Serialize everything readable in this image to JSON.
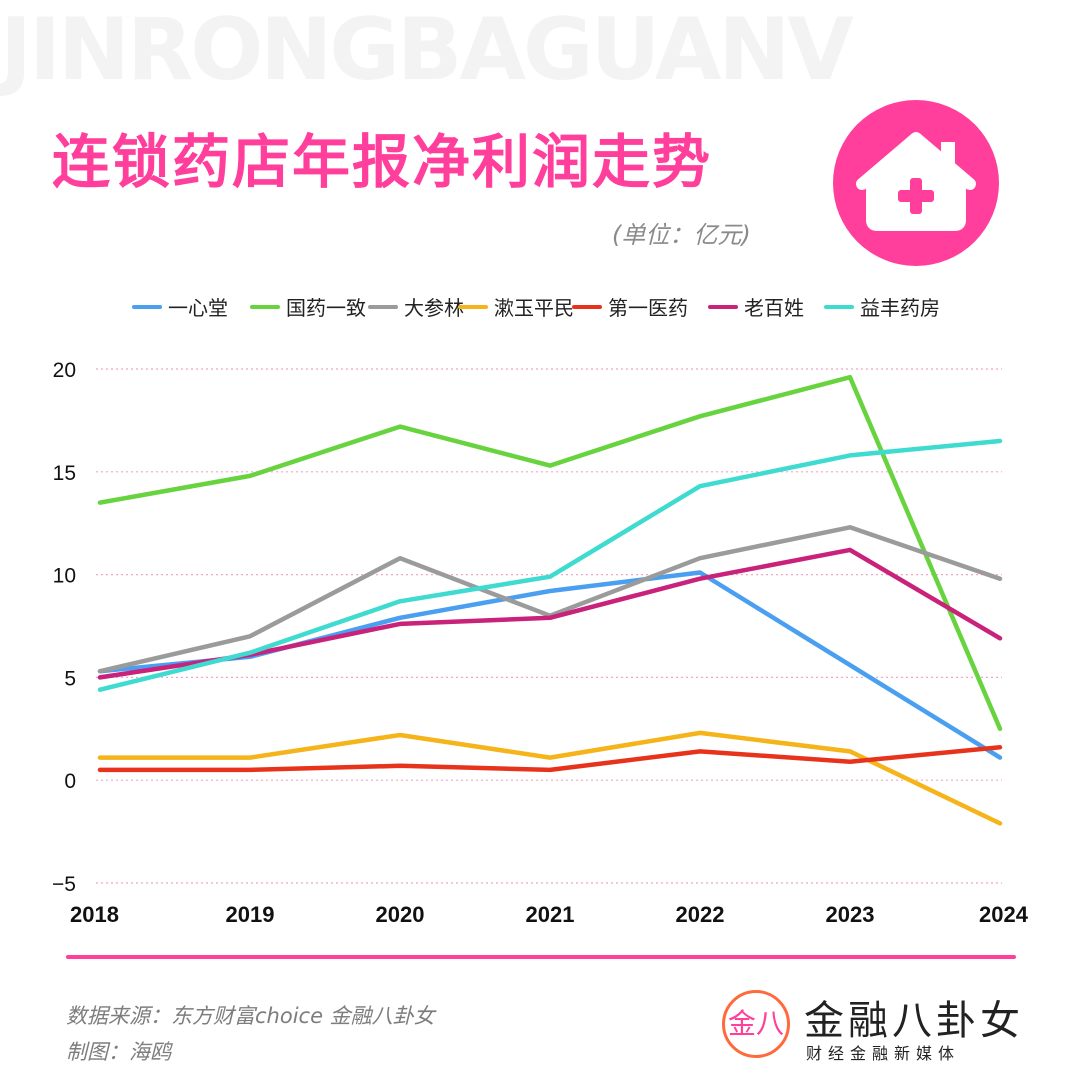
{
  "watermark": "JINRONGBAGUANV",
  "header": {
    "title": "连锁药店年报净利润走势",
    "unit": "(单位：亿元)",
    "badge_icon": "house-plus-icon"
  },
  "colors": {
    "accent": "#ff3f9b",
    "gridline": "#f2a5c8"
  },
  "chart_data": {
    "type": "line",
    "x": [
      "2018",
      "2019",
      "2020",
      "2021",
      "2022",
      "2023",
      "2024"
    ],
    "ylim": [
      -5,
      20
    ],
    "yticks": [
      "20",
      "15",
      "10",
      "5",
      "0",
      "−5"
    ],
    "ytick_values": [
      20,
      15,
      10,
      5,
      0,
      -5
    ],
    "grid": "horizontal dotted",
    "legend_position": "top",
    "series": [
      {
        "name": "一心堂",
        "color": "#4a9ff0",
        "values": [
          5.3,
          6.0,
          7.9,
          9.2,
          10.1,
          5.6,
          1.1
        ]
      },
      {
        "name": "国药一致",
        "color": "#67d33f",
        "values": [
          13.5,
          14.8,
          17.2,
          15.3,
          17.7,
          19.6,
          2.5
        ]
      },
      {
        "name": "大参林",
        "color": "#9b9b9b",
        "values": [
          5.3,
          7.0,
          10.8,
          8.0,
          10.8,
          12.3,
          9.8
        ]
      },
      {
        "name": "漱玉平民",
        "color": "#f4b41a",
        "values": [
          1.1,
          1.1,
          2.2,
          1.1,
          2.3,
          1.4,
          -2.1
        ]
      },
      {
        "name": "第一医药",
        "color": "#e8331c",
        "values": [
          0.5,
          0.5,
          0.7,
          0.5,
          1.4,
          0.9,
          1.6
        ]
      },
      {
        "name": "老百姓",
        "color": "#c8227a",
        "values": [
          5.0,
          6.1,
          7.6,
          7.9,
          9.8,
          11.2,
          6.9
        ]
      },
      {
        "name": "益丰药房",
        "color": "#3fdbd0",
        "values": [
          4.4,
          6.2,
          8.7,
          9.9,
          14.3,
          15.8,
          16.5
        ]
      }
    ]
  },
  "footer": {
    "source": "数据来源：东方财富choice  金融八卦女",
    "author": "制图：海鸥",
    "logo_mark": "金八",
    "logo_name": "金融八卦女",
    "logo_sub": "财经金融新媒体"
  }
}
